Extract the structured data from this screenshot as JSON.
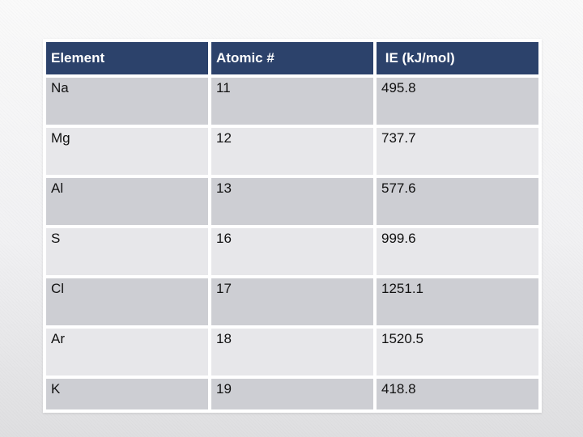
{
  "slide": {
    "background_top": "#fafafa",
    "background_bottom": "#dfdfe1"
  },
  "table": {
    "headers": [
      "Element",
      "Atomic #",
      " IE (kJ/mol)"
    ],
    "rows": [
      {
        "element": "Na",
        "atomic_number": "11",
        "ie": "495.8"
      },
      {
        "element": "Mg",
        "atomic_number": "12",
        "ie": "737.7"
      },
      {
        "element": "Al",
        "atomic_number": "13",
        "ie": "577.6"
      },
      {
        "element": "S",
        "atomic_number": "16",
        "ie": "999.6"
      },
      {
        "element": "Cl",
        "atomic_number": "17",
        "ie": "1251.1"
      },
      {
        "element": "Ar",
        "atomic_number": "18",
        "ie": "1520.5"
      },
      {
        "element": "K",
        "atomic_number": "19",
        "ie": "418.8"
      }
    ],
    "colors": {
      "header_bg": "#2c426b",
      "header_text": "#ffffff",
      "row_dark": "#cdced3",
      "row_light": "#e7e7ea",
      "cell_text": "#111111",
      "grid_line": "#ffffff"
    }
  },
  "chart_data": {
    "type": "table",
    "columns": [
      "Element",
      "Atomic #",
      "IE (kJ/mol)"
    ],
    "rows": [
      [
        "Na",
        11,
        495.8
      ],
      [
        "Mg",
        12,
        737.7
      ],
      [
        "Al",
        13,
        577.6
      ],
      [
        "S",
        16,
        999.6
      ],
      [
        "Cl",
        17,
        1251.1
      ],
      [
        "Ar",
        18,
        1520.5
      ],
      [
        "K",
        19,
        418.8
      ]
    ]
  }
}
